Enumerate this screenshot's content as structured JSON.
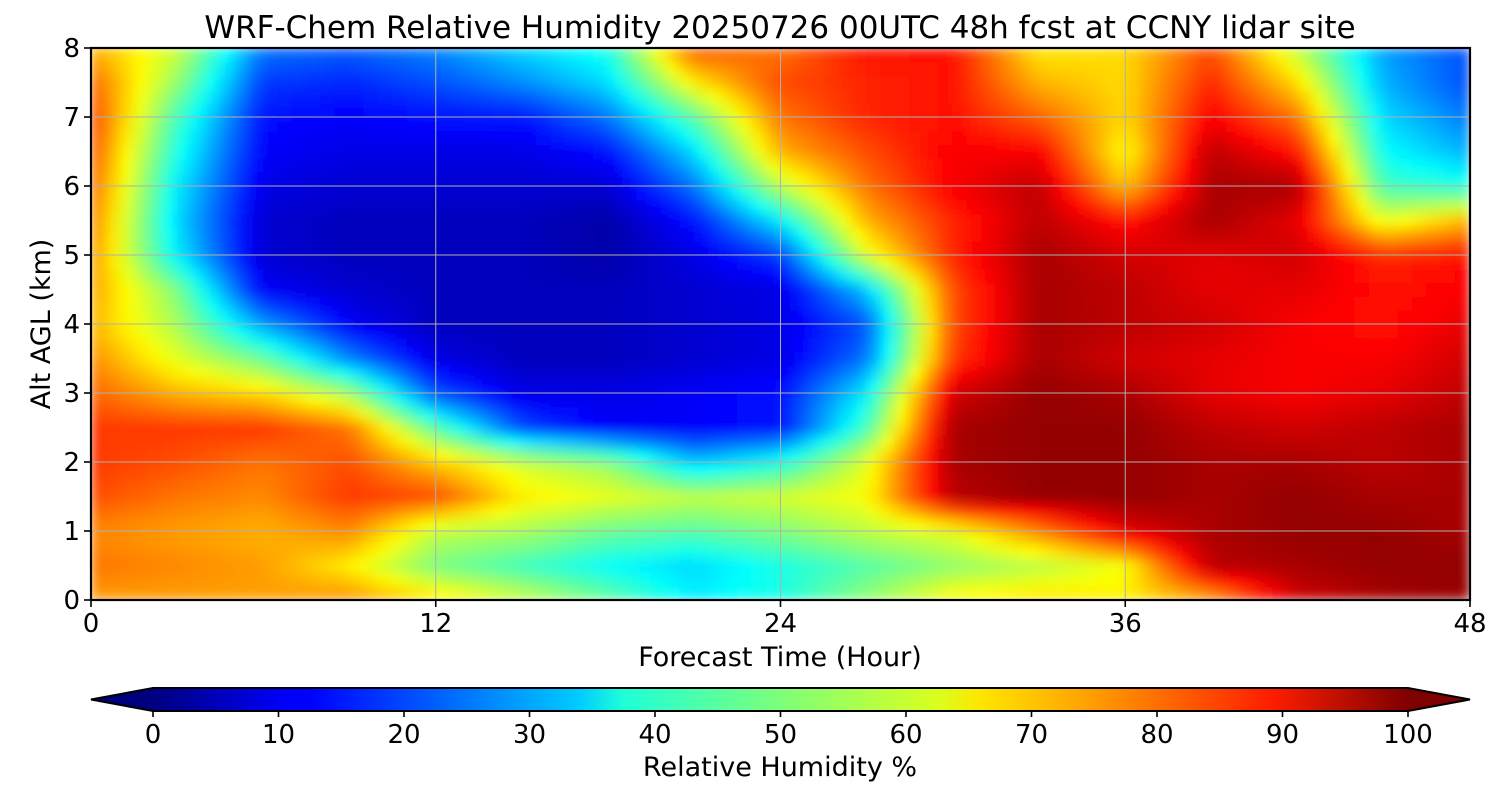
{
  "chart_data": {
    "type": "heatmap",
    "subtype": "filled-contour",
    "title": "WRF-Chem Relative Humidity 20250726 00UTC 48h fcst at CCNY lidar site",
    "xlabel": "Forecast Time (Hour)",
    "ylabel": "Alt AGL (km)",
    "xlim": [
      0,
      48
    ],
    "ylim": [
      0,
      8
    ],
    "x_ticks": [
      0,
      12,
      24,
      36,
      48
    ],
    "y_ticks": [
      0,
      1,
      2,
      3,
      4,
      5,
      6,
      7,
      8
    ],
    "grid": true,
    "colormap": "jet",
    "colorbar": {
      "label": "Relative Humidity %",
      "range": [
        0,
        100
      ],
      "ticks": [
        0,
        10,
        20,
        30,
        40,
        50,
        60,
        70,
        80,
        90,
        100
      ],
      "extend": "both",
      "orientation": "horizontal",
      "placement": "bottom"
    },
    "x": [
      0,
      3,
      6,
      9,
      12,
      15,
      18,
      21,
      24,
      27,
      30,
      33,
      36,
      39,
      42,
      45,
      48
    ],
    "y": [
      0,
      0.5,
      1,
      1.5,
      2,
      2.5,
      3,
      3.5,
      4,
      4.5,
      5,
      5.5,
      6,
      6.5,
      7,
      7.5,
      8
    ],
    "values": [
      [
        72,
        72,
        72,
        74,
        66,
        58,
        48,
        36,
        40,
        52,
        64,
        66,
        64,
        70,
        92,
        96,
        98
      ],
      [
        76,
        74,
        72,
        64,
        50,
        44,
        38,
        34,
        40,
        46,
        52,
        56,
        62,
        94,
        96,
        98,
        98
      ],
      [
        74,
        72,
        70,
        74,
        56,
        54,
        48,
        46,
        50,
        56,
        60,
        74,
        90,
        96,
        98,
        98,
        96
      ],
      [
        80,
        76,
        74,
        82,
        80,
        64,
        60,
        56,
        58,
        62,
        94,
        98,
        98,
        96,
        98,
        96,
        96
      ],
      [
        82,
        80,
        76,
        80,
        68,
        58,
        52,
        32,
        40,
        60,
        96,
        98,
        98,
        96,
        96,
        94,
        96
      ],
      [
        82,
        82,
        82,
        76,
        46,
        20,
        12,
        12,
        14,
        44,
        96,
        98,
        98,
        94,
        92,
        94,
        96
      ],
      [
        78,
        70,
        66,
        54,
        20,
        10,
        10,
        12,
        14,
        36,
        92,
        98,
        96,
        90,
        88,
        90,
        94
      ],
      [
        74,
        60,
        48,
        26,
        10,
        6,
        6,
        8,
        10,
        24,
        82,
        96,
        92,
        90,
        88,
        88,
        92
      ],
      [
        70,
        54,
        28,
        12,
        6,
        6,
        6,
        8,
        10,
        20,
        80,
        96,
        94,
        92,
        88,
        86,
        90
      ],
      [
        72,
        50,
        12,
        8,
        6,
        6,
        6,
        8,
        10,
        32,
        80,
        96,
        94,
        90,
        90,
        86,
        88
      ],
      [
        74,
        36,
        8,
        6,
        6,
        6,
        4,
        10,
        18,
        60,
        84,
        96,
        92,
        90,
        92,
        84,
        86
      ],
      [
        76,
        34,
        8,
        6,
        6,
        6,
        4,
        14,
        36,
        70,
        84,
        94,
        86,
        96,
        90,
        60,
        70
      ],
      [
        78,
        36,
        10,
        8,
        8,
        8,
        8,
        24,
        56,
        76,
        88,
        94,
        68,
        96,
        96,
        44,
        40
      ],
      [
        80,
        40,
        12,
        10,
        10,
        10,
        14,
        34,
        70,
        80,
        88,
        88,
        62,
        94,
        86,
        38,
        30
      ],
      [
        82,
        44,
        14,
        12,
        14,
        14,
        24,
        46,
        76,
        84,
        86,
        78,
        66,
        88,
        76,
        34,
        24
      ],
      [
        78,
        52,
        18,
        16,
        20,
        26,
        34,
        64,
        80,
        84,
        86,
        70,
        66,
        84,
        66,
        30,
        20
      ],
      [
        70,
        58,
        24,
        22,
        26,
        34,
        40,
        80,
        76,
        86,
        86,
        64,
        66,
        80,
        56,
        28,
        20
      ]
    ]
  }
}
